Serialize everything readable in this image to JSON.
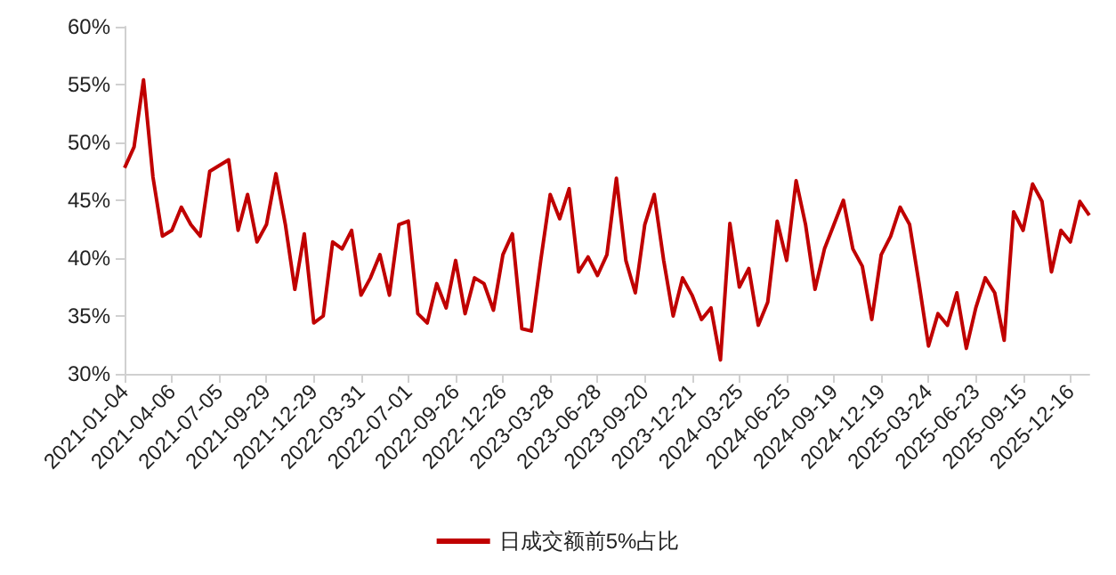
{
  "chart_data": {
    "type": "line",
    "categories": [
      "2021-01-04",
      null,
      null,
      null,
      null,
      "2021-04-06",
      null,
      null,
      null,
      null,
      "2021-07-05",
      null,
      null,
      null,
      null,
      "2021-09-29",
      null,
      null,
      null,
      null,
      "2021-12-29",
      null,
      null,
      null,
      null,
      "2022-03-31",
      null,
      null,
      null,
      null,
      "2022-07-01",
      null,
      null,
      null,
      null,
      "2022-09-26",
      null,
      null,
      null,
      null,
      "2022-12-26",
      null,
      null,
      null,
      null,
      "2023-03-28",
      null,
      null,
      null,
      null,
      "2023-06-28",
      null,
      null,
      null,
      null,
      "2023-09-20",
      null,
      null,
      null,
      null,
      "2023-12-21",
      null,
      null,
      null,
      null,
      "2024-03-25",
      null,
      null,
      null,
      null,
      "2024-06-25",
      null,
      null,
      null,
      null,
      "2024-09-19",
      null,
      null,
      null,
      null,
      "2024-12-19",
      null,
      null,
      null,
      null,
      "2025-03-24",
      null,
      null,
      null,
      null,
      "2025-06-23",
      null,
      null,
      null,
      null,
      "2025-09-15",
      null,
      null,
      null,
      null,
      "2025-12-16",
      null,
      null
    ],
    "series": [
      {
        "name": "日成交额前5%占比",
        "color": "#c00000",
        "values": [
          47.8,
          49.6,
          55.4,
          47.0,
          41.9,
          42.4,
          44.4,
          42.9,
          41.9,
          47.5,
          48.0,
          48.5,
          42.4,
          45.5,
          41.4,
          42.9,
          47.3,
          42.9,
          37.3,
          42.1,
          34.4,
          35.0,
          41.4,
          40.8,
          42.4,
          36.8,
          38.3,
          40.3,
          36.8,
          42.9,
          43.2,
          35.2,
          34.4,
          37.8,
          35.7,
          39.8,
          35.2,
          38.3,
          37.8,
          35.5,
          40.3,
          42.1,
          33.9,
          33.7,
          39.8,
          45.5,
          43.4,
          46.0,
          38.8,
          40.1,
          38.5,
          40.3,
          46.9,
          39.8,
          37.0,
          42.9,
          45.5,
          39.8,
          35.0,
          38.3,
          36.8,
          34.7,
          35.7,
          31.2,
          43.0,
          37.5,
          39.1,
          34.2,
          36.2,
          43.2,
          39.8,
          46.7,
          42.9,
          37.3,
          40.8,
          42.9,
          45.0,
          40.8,
          39.3,
          34.7,
          40.3,
          41.9,
          44.4,
          42.9,
          37.8,
          32.4,
          35.2,
          34.2,
          37.0,
          32.2,
          35.7,
          38.3,
          37.0,
          32.9,
          44.0,
          42.4,
          46.4,
          44.9,
          38.8,
          42.4,
          41.4,
          44.9,
          43.7
        ]
      }
    ],
    "ylim": [
      30,
      60
    ],
    "yticks": [
      {
        "value": 30,
        "label": "30%"
      },
      {
        "value": 35,
        "label": "35%"
      },
      {
        "value": 40,
        "label": "40%"
      },
      {
        "value": 45,
        "label": "45%"
      },
      {
        "value": 50,
        "label": "50%"
      },
      {
        "value": 55,
        "label": "55%"
      },
      {
        "value": 60,
        "label": "60%"
      }
    ],
    "grid": false,
    "legend": "bottom",
    "marker": "none",
    "line_style": "solid"
  }
}
